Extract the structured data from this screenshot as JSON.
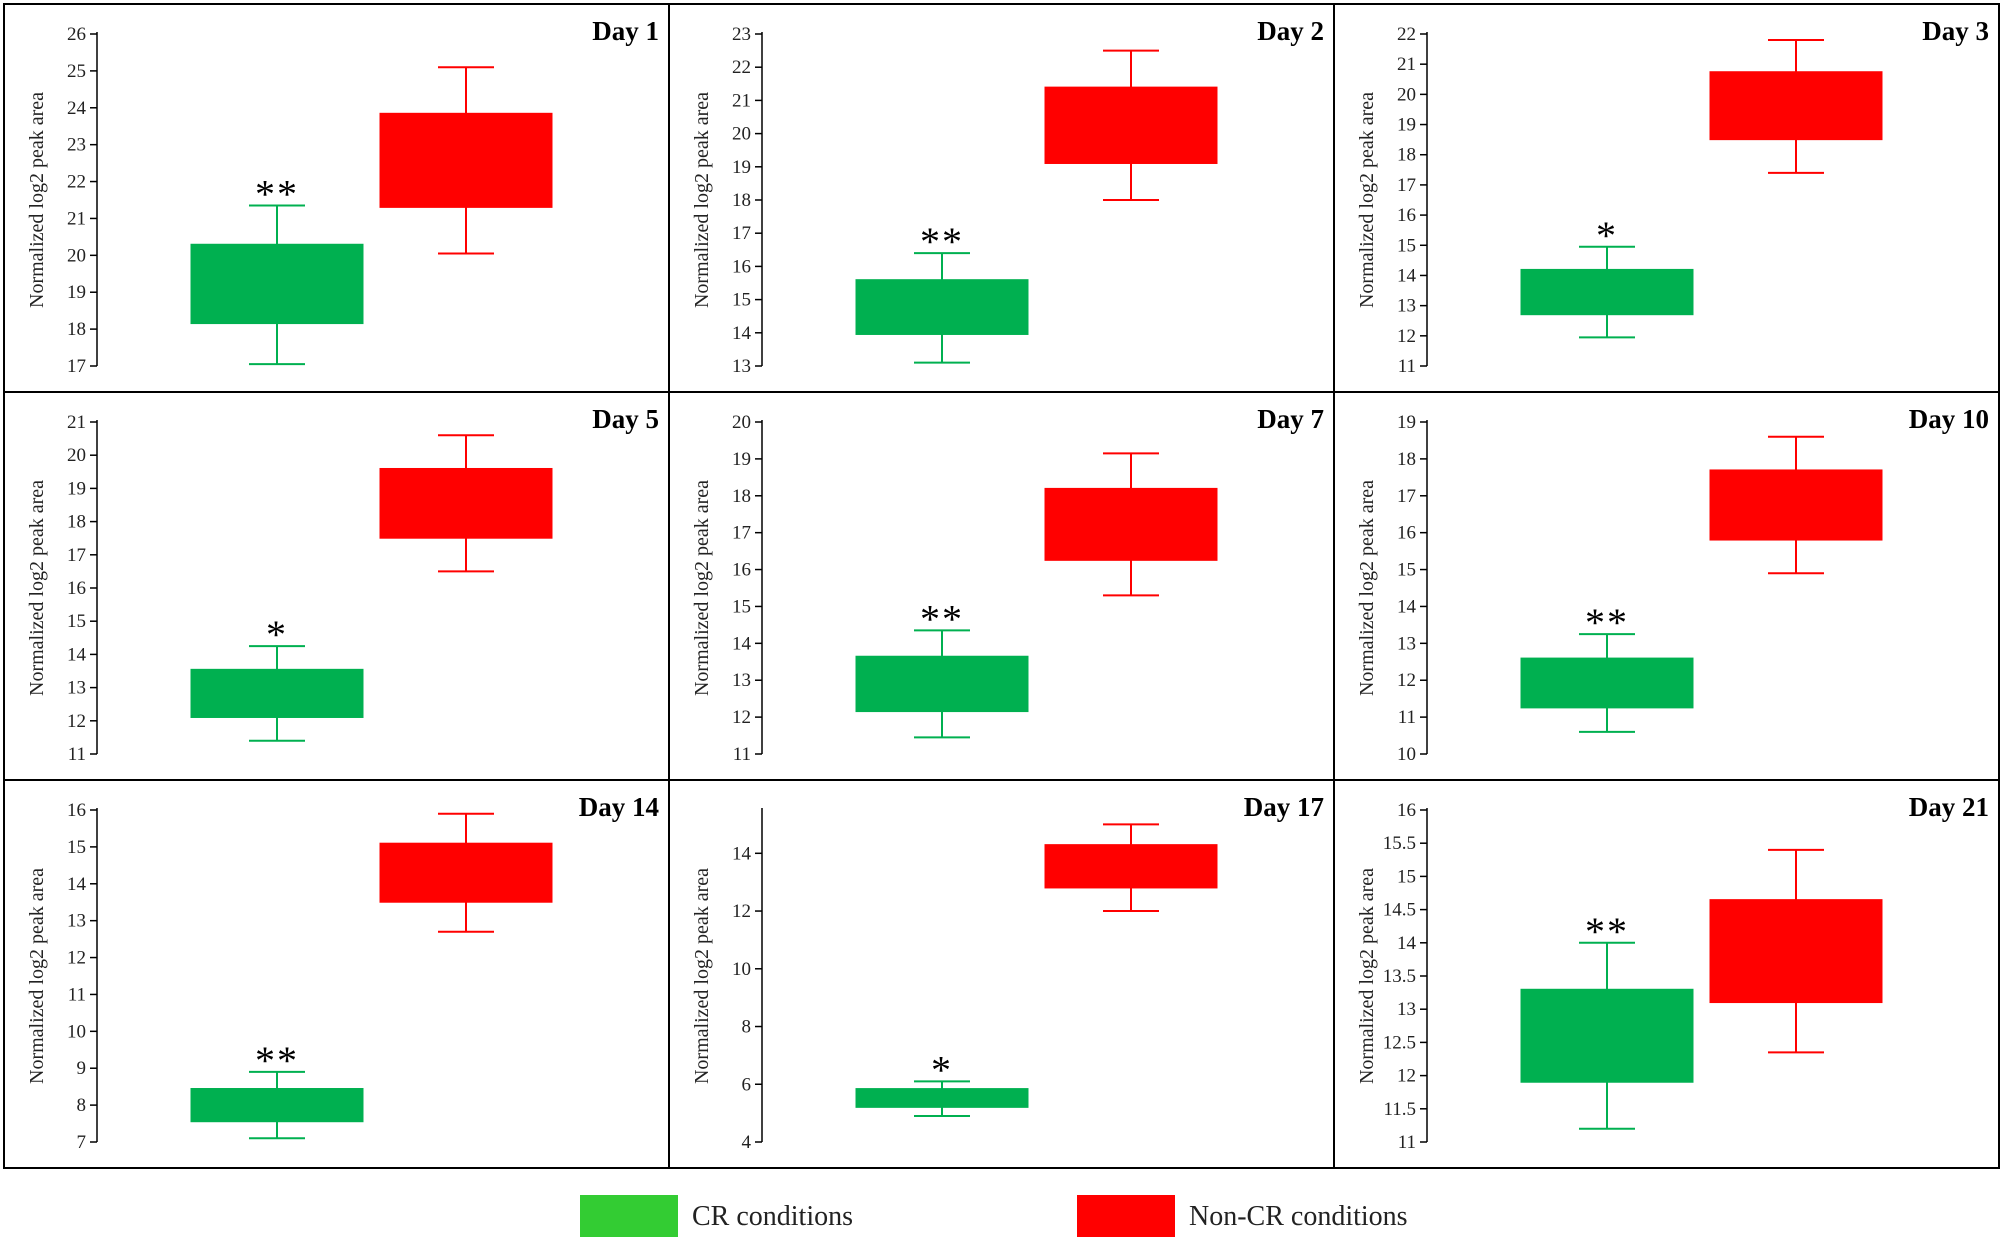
{
  "figure": {
    "legend": [
      {
        "label": "CR conditions",
        "color": "#33cc33"
      },
      {
        "label": "Non-CR conditions",
        "color": "#ff0000"
      }
    ]
  },
  "chart_data": [
    {
      "type": "boxplot",
      "title": "Day 1",
      "ylabel": "Normalized log2 peak area",
      "ylim": [
        17,
        26
      ],
      "yticks": [
        17,
        18,
        19,
        20,
        21,
        22,
        23,
        24,
        25,
        26
      ],
      "series": [
        {
          "name": "CR conditions",
          "color": "#00b050",
          "whisker_low": 17.05,
          "q1": 18.15,
          "q3": 20.3,
          "whisker_high": 21.35,
          "significance": "**"
        },
        {
          "name": "Non-CR conditions",
          "color": "#ff0000",
          "whisker_low": 20.05,
          "q1": 21.3,
          "q3": 23.85,
          "whisker_high": 25.1,
          "significance": ""
        }
      ]
    },
    {
      "type": "boxplot",
      "title": "Day 2",
      "ylabel": "Normalized log2 peak area",
      "ylim": [
        13,
        23
      ],
      "yticks": [
        13,
        14,
        15,
        16,
        17,
        18,
        19,
        20,
        21,
        22,
        23
      ],
      "series": [
        {
          "name": "CR conditions",
          "color": "#00b050",
          "whisker_low": 13.1,
          "q1": 13.95,
          "q3": 15.6,
          "whisker_high": 16.4,
          "significance": "**"
        },
        {
          "name": "Non-CR conditions",
          "color": "#ff0000",
          "whisker_low": 18.0,
          "q1": 19.1,
          "q3": 21.4,
          "whisker_high": 22.5,
          "significance": ""
        }
      ]
    },
    {
      "type": "boxplot",
      "title": "Day 3",
      "ylabel": "Normalized log2 peak area",
      "ylim": [
        11,
        22
      ],
      "yticks": [
        11,
        12,
        13,
        14,
        15,
        16,
        17,
        18,
        19,
        20,
        21,
        22
      ],
      "series": [
        {
          "name": "CR conditions",
          "color": "#00b050",
          "whisker_low": 11.95,
          "q1": 12.7,
          "q3": 14.2,
          "whisker_high": 14.95,
          "significance": "*"
        },
        {
          "name": "Non-CR conditions",
          "color": "#ff0000",
          "whisker_low": 17.4,
          "q1": 18.5,
          "q3": 20.75,
          "whisker_high": 21.8,
          "significance": ""
        }
      ]
    },
    {
      "type": "boxplot",
      "title": "Day 5",
      "ylabel": "Normalized log2 peak area",
      "ylim": [
        11,
        21
      ],
      "yticks": [
        11,
        12,
        13,
        14,
        15,
        16,
        17,
        18,
        19,
        20,
        21
      ],
      "series": [
        {
          "name": "CR conditions",
          "color": "#00b050",
          "whisker_low": 11.4,
          "q1": 12.1,
          "q3": 13.55,
          "whisker_high": 14.25,
          "significance": "*"
        },
        {
          "name": "Non-CR conditions",
          "color": "#ff0000",
          "whisker_low": 16.5,
          "q1": 17.5,
          "q3": 19.6,
          "whisker_high": 20.6,
          "significance": ""
        }
      ]
    },
    {
      "type": "boxplot",
      "title": "Day 7",
      "ylabel": "Normalized log2 peak area",
      "ylim": [
        11,
        20
      ],
      "yticks": [
        11,
        12,
        13,
        14,
        15,
        16,
        17,
        18,
        19,
        20
      ],
      "series": [
        {
          "name": "CR conditions",
          "color": "#00b050",
          "whisker_low": 11.45,
          "q1": 12.15,
          "q3": 13.65,
          "whisker_high": 14.35,
          "significance": "**"
        },
        {
          "name": "Non-CR conditions",
          "color": "#ff0000",
          "whisker_low": 15.3,
          "q1": 16.25,
          "q3": 18.2,
          "whisker_high": 19.15,
          "significance": ""
        }
      ]
    },
    {
      "type": "boxplot",
      "title": "Day 10",
      "ylabel": "Normalized log2 peak area",
      "ylim": [
        10,
        19
      ],
      "yticks": [
        10,
        11,
        12,
        13,
        14,
        15,
        16,
        17,
        18,
        19
      ],
      "series": [
        {
          "name": "CR conditions",
          "color": "#00b050",
          "whisker_low": 10.6,
          "q1": 11.25,
          "q3": 12.6,
          "whisker_high": 13.25,
          "significance": "**"
        },
        {
          "name": "Non-CR conditions",
          "color": "#ff0000",
          "whisker_low": 14.9,
          "q1": 15.8,
          "q3": 17.7,
          "whisker_high": 18.6,
          "significance": ""
        }
      ]
    },
    {
      "type": "boxplot",
      "title": "Day 14",
      "ylabel": "Normalized log2 peak area",
      "ylim": [
        7,
        16
      ],
      "yticks": [
        7,
        8,
        9,
        10,
        11,
        12,
        13,
        14,
        15,
        16
      ],
      "series": [
        {
          "name": "CR conditions",
          "color": "#00b050",
          "whisker_low": 7.1,
          "q1": 7.55,
          "q3": 8.45,
          "whisker_high": 8.9,
          "significance": "**"
        },
        {
          "name": "Non-CR conditions",
          "color": "#ff0000",
          "whisker_low": 12.7,
          "q1": 13.5,
          "q3": 15.1,
          "whisker_high": 15.9,
          "significance": ""
        }
      ]
    },
    {
      "type": "boxplot",
      "title": "Day 17",
      "ylabel": "Normalized log2 peak area",
      "ylim": [
        4,
        15.5
      ],
      "yticks": [
        4,
        6,
        8,
        10,
        12,
        14
      ],
      "series": [
        {
          "name": "CR conditions",
          "color": "#00b050",
          "whisker_low": 4.9,
          "q1": 5.2,
          "q3": 5.85,
          "whisker_high": 6.1,
          "significance": "*"
        },
        {
          "name": "Non-CR conditions",
          "color": "#ff0000",
          "whisker_low": 12.0,
          "q1": 12.8,
          "q3": 14.3,
          "whisker_high": 15.0,
          "significance": ""
        }
      ]
    },
    {
      "type": "boxplot",
      "title": "Day 21",
      "ylabel": "Normalized log2 peak area",
      "ylim": [
        11,
        16
      ],
      "yticks": [
        11,
        11.5,
        12,
        12.5,
        13,
        13.5,
        14,
        14.5,
        15,
        15.5,
        16
      ],
      "series": [
        {
          "name": "CR conditions",
          "color": "#00b050",
          "whisker_low": 11.2,
          "q1": 11.9,
          "q3": 13.3,
          "whisker_high": 14.0,
          "significance": "**"
        },
        {
          "name": "Non-CR conditions",
          "color": "#ff0000",
          "whisker_low": 12.35,
          "q1": 13.1,
          "q3": 14.65,
          "whisker_high": 15.4,
          "significance": ""
        }
      ]
    }
  ]
}
